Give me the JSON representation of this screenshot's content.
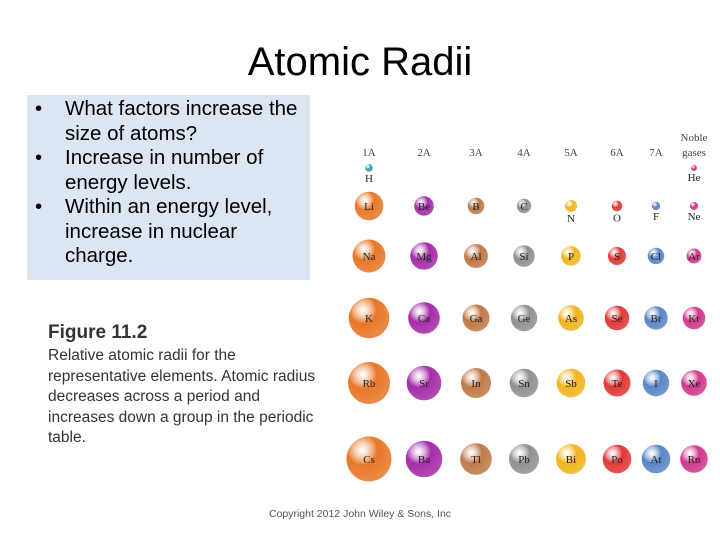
{
  "title": "Atomic Radii",
  "bullets": [
    "What factors increase the size of atoms?",
    "Increase in number of energy levels.",
    "Within an energy level, increase in nuclear charge."
  ],
  "figure": {
    "label": "Figure 11.2",
    "caption": "Relative atomic radii for the representative elements. Atomic radius decreases across a period and increases down a group in the periodic table."
  },
  "group_labels": [
    "1A",
    "2A",
    "3A",
    "4A",
    "5A",
    "6A",
    "7A"
  ],
  "noble_label_line1": "Noble",
  "noble_label_line2": "gases",
  "colors": {
    "group1": "#e8782a",
    "group2": "#a52ea8",
    "group3": "#c07a4a",
    "group4": "#8f9194",
    "group5": "#f2b522",
    "group6": "#e03a38",
    "group7": "#5b86c6",
    "group8": "#d23a8e",
    "hydrogen": "#3aa0a8"
  },
  "elements": [
    {
      "symbol": "H",
      "group": 1,
      "period": 1,
      "radius": 0.25
    },
    {
      "symbol": "He",
      "group": 8,
      "period": 1,
      "radius": 0.2
    },
    {
      "symbol": "Li",
      "group": 1,
      "period": 2,
      "radius": 0.95
    },
    {
      "symbol": "Be",
      "group": 2,
      "period": 2,
      "radius": 0.65
    },
    {
      "symbol": "B",
      "group": 3,
      "period": 2,
      "radius": 0.55
    },
    {
      "symbol": "C",
      "group": 4,
      "period": 2,
      "radius": 0.48
    },
    {
      "symbol": "N",
      "group": 5,
      "period": 2,
      "radius": 0.4
    },
    {
      "symbol": "O",
      "group": 6,
      "period": 2,
      "radius": 0.35
    },
    {
      "symbol": "F",
      "group": 7,
      "period": 2,
      "radius": 0.28
    },
    {
      "symbol": "Ne",
      "group": 8,
      "period": 2,
      "radius": 0.27
    },
    {
      "symbol": "Na",
      "group": 1,
      "period": 3,
      "radius": 1.1
    },
    {
      "symbol": "Mg",
      "group": 2,
      "period": 3,
      "radius": 0.92
    },
    {
      "symbol": "Al",
      "group": 3,
      "period": 3,
      "radius": 0.8
    },
    {
      "symbol": "Si",
      "group": 4,
      "period": 3,
      "radius": 0.72
    },
    {
      "symbol": "P",
      "group": 5,
      "period": 3,
      "radius": 0.65
    },
    {
      "symbol": "S",
      "group": 6,
      "period": 3,
      "radius": 0.6
    },
    {
      "symbol": "Cl",
      "group": 7,
      "period": 3,
      "radius": 0.55
    },
    {
      "symbol": "Ar",
      "group": 8,
      "period": 3,
      "radius": 0.5
    },
    {
      "symbol": "K",
      "group": 1,
      "period": 4,
      "radius": 1.35
    },
    {
      "symbol": "Ca",
      "group": 2,
      "period": 4,
      "radius": 1.05
    },
    {
      "symbol": "Ga",
      "group": 3,
      "period": 4,
      "radius": 0.9
    },
    {
      "symbol": "Ge",
      "group": 4,
      "period": 4,
      "radius": 0.88
    },
    {
      "symbol": "As",
      "group": 5,
      "period": 4,
      "radius": 0.85
    },
    {
      "symbol": "Se",
      "group": 6,
      "period": 4,
      "radius": 0.82
    },
    {
      "symbol": "Br",
      "group": 7,
      "period": 4,
      "radius": 0.78
    },
    {
      "symbol": "Kr",
      "group": 8,
      "period": 4,
      "radius": 0.75
    },
    {
      "symbol": "Rb",
      "group": 1,
      "period": 5,
      "radius": 1.4
    },
    {
      "symbol": "Sr",
      "group": 2,
      "period": 5,
      "radius": 1.15
    },
    {
      "symbol": "In",
      "group": 3,
      "period": 5,
      "radius": 1.0
    },
    {
      "symbol": "Sn",
      "group": 4,
      "period": 5,
      "radius": 0.95
    },
    {
      "symbol": "Sb",
      "group": 5,
      "period": 5,
      "radius": 0.95
    },
    {
      "symbol": "Te",
      "group": 6,
      "period": 5,
      "radius": 0.9
    },
    {
      "symbol": "I",
      "group": 7,
      "period": 5,
      "radius": 0.88
    },
    {
      "symbol": "Xe",
      "group": 8,
      "period": 5,
      "radius": 0.85
    },
    {
      "symbol": "Cs",
      "group": 1,
      "period": 6,
      "radius": 1.5
    },
    {
      "symbol": "Ba",
      "group": 2,
      "period": 6,
      "radius": 1.22
    },
    {
      "symbol": "Tl",
      "group": 3,
      "period": 6,
      "radius": 1.05
    },
    {
      "symbol": "Pb",
      "group": 4,
      "period": 6,
      "radius": 1.0
    },
    {
      "symbol": "Bi",
      "group": 5,
      "period": 6,
      "radius": 1.0
    },
    {
      "symbol": "Po",
      "group": 6,
      "period": 6,
      "radius": 0.95
    },
    {
      "symbol": "At",
      "group": 7,
      "period": 6,
      "radius": 0.95
    },
    {
      "symbol": "Rn",
      "group": 8,
      "period": 6,
      "radius": 0.92
    }
  ],
  "copyright": "Copyright 2012 John Wiley & Sons, Inc"
}
